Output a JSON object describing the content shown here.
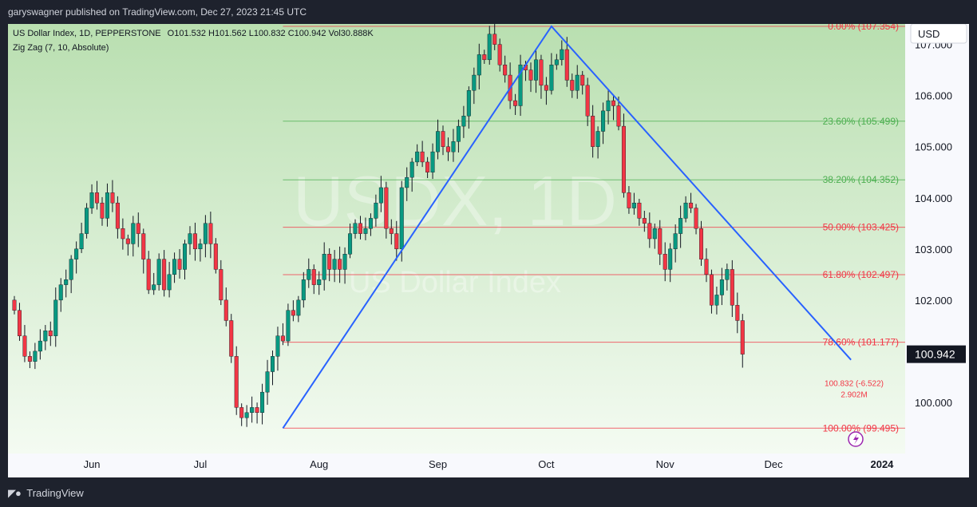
{
  "publisher_line": "garyswagner published on TradingView.com, Dec 27, 2023 21:45 UTC",
  "footer_brand": "TradingView",
  "footer_icon": "tradingview-logo-icon",
  "chart_data": {
    "type": "candlestick",
    "symbol_line": "US Dollar Index, 1D, PEPPERSTONE",
    "ohlc_readout": "O101.532  H101.562  L100.832  C100.942  Vol30.888K",
    "indicator_line": "Zig Zag (7, 10, Absolute)",
    "watermark_symbol": "USDX, 1D",
    "watermark_name": "US Dollar Index",
    "currency": "USD",
    "last_price": "100.942",
    "change_label": "100.832 (-6.522)",
    "volume_label": "2.902M",
    "ylim": [
      99.0,
      107.4
    ],
    "y_ticks": [
      "100.000",
      "101.000",
      "102.000",
      "103.000",
      "104.000",
      "105.000",
      "106.000",
      "107.000"
    ],
    "x_ticks": [
      "Jun",
      "Jul",
      "Aug",
      "Sep",
      "Oct",
      "Nov",
      "Dec",
      "2024"
    ],
    "x_tick_index": [
      15,
      36,
      59,
      82,
      103,
      126,
      147,
      168
    ],
    "colors": {
      "up": "#089981",
      "down": "#f23645",
      "zigzag": "#2962ff",
      "fib_red": "#f23645",
      "fib_green": "#4caf50",
      "bg_top": "#b9dfb0",
      "bg_bottom": "#f4fbf2"
    },
    "zigzag": [
      {
        "date": "2023-07-14",
        "index": 52,
        "value": 99.495
      },
      {
        "date": "2023-10-03",
        "index": 104,
        "value": 107.354
      },
      {
        "date": "2023-12-27",
        "index": 162,
        "value": 100.832
      }
    ],
    "fib_levels": [
      {
        "label": "0.00% (107.354)",
        "value": 107.354,
        "color": "red"
      },
      {
        "label": "23.60% (105.499)",
        "value": 105.499,
        "color": "green"
      },
      {
        "label": "38.20% (104.352)",
        "value": 104.352,
        "color": "green"
      },
      {
        "label": "50.00% (103.425)",
        "value": 103.425,
        "color": "red"
      },
      {
        "label": "61.80% (102.497)",
        "value": 102.497,
        "color": "red"
      },
      {
        "label": "78.60% (101.177)",
        "value": 101.177,
        "color": "red"
      },
      {
        "label": "100.00% (99.495)",
        "value": 99.495,
        "color": "red"
      }
    ],
    "closes": [
      101.8,
      101.3,
      100.9,
      100.8,
      101.0,
      101.2,
      101.4,
      101.3,
      102.0,
      102.3,
      102.4,
      102.8,
      103.0,
      103.3,
      103.8,
      104.1,
      103.9,
      103.6,
      104.1,
      103.9,
      103.4,
      103.2,
      103.1,
      103.5,
      103.3,
      102.8,
      102.2,
      102.3,
      102.8,
      102.2,
      102.5,
      102.8,
      102.6,
      103.1,
      103.3,
      103.0,
      103.1,
      103.5,
      103.1,
      102.6,
      102.0,
      101.6,
      100.9,
      99.9,
      99.7,
      99.8,
      99.9,
      99.8,
      100.2,
      100.6,
      100.9,
      101.3,
      101.2,
      101.8,
      101.7,
      102.0,
      102.4,
      102.6,
      102.3,
      102.4,
      102.9,
      102.6,
      102.8,
      102.6,
      102.9,
      103.3,
      103.5,
      103.3,
      103.4,
      103.6,
      103.9,
      104.2,
      103.4,
      103.3,
      103.0,
      104.2,
      104.4,
      104.7,
      104.9,
      104.7,
      104.5,
      104.9,
      105.3,
      105.0,
      104.9,
      105.1,
      105.4,
      105.6,
      106.1,
      106.4,
      106.8,
      106.7,
      107.2,
      107.0,
      106.6,
      106.4,
      105.9,
      105.8,
      106.6,
      106.5,
      106.3,
      106.7,
      106.2,
      106.1,
      106.6,
      106.7,
      106.9,
      106.3,
      106.1,
      106.4,
      106.2,
      105.6,
      105.0,
      105.3,
      105.7,
      105.9,
      105.8,
      105.4,
      104.1,
      103.8,
      103.9,
      103.6,
      103.5,
      103.2,
      103.4,
      102.9,
      102.6,
      103.0,
      103.3,
      103.6,
      103.9,
      103.8,
      103.4,
      102.8,
      102.5,
      101.9,
      102.1,
      102.4,
      102.6,
      101.9,
      101.6,
      100.942
    ]
  }
}
